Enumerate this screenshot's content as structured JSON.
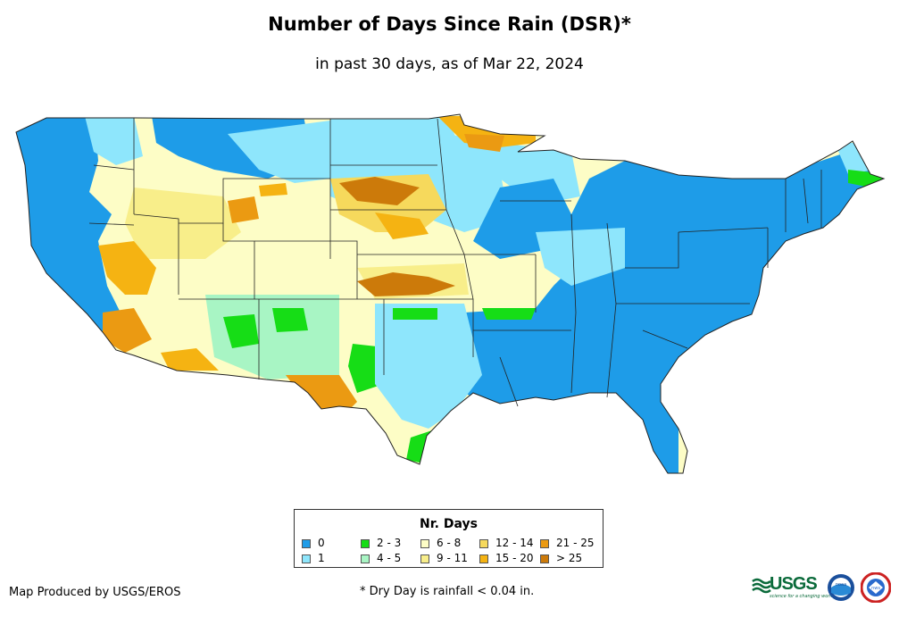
{
  "header": {
    "title": "Number of Days Since Rain (DSR)*",
    "subtitle": "in past 30 days, as of Mar 22, 2024"
  },
  "legend": {
    "title": "Nr. Days",
    "items": [
      {
        "label": "0",
        "color": "#1e9ce8"
      },
      {
        "label": "1",
        "color": "#8ee6fc"
      },
      {
        "label": "2 - 3",
        "color": "#16dd16"
      },
      {
        "label": "4 - 5",
        "color": "#a8f5c4"
      },
      {
        "label": "6 - 8",
        "color": "#fdfdc6"
      },
      {
        "label": "9 - 11",
        "color": "#f8ee8a"
      },
      {
        "label": "12 - 14",
        "color": "#f6d95c"
      },
      {
        "label": "15 - 20",
        "color": "#f5b312"
      },
      {
        "label": "21 - 25",
        "color": "#eb9a12"
      },
      {
        "label": "> 25",
        "color": "#cc7a0a"
      }
    ]
  },
  "footer": {
    "producer": "Map Produced by USGS/EROS",
    "note": "* Dry Day is rainfall < 0.04 in."
  },
  "logos": {
    "usgs": "USGS",
    "usgs_tagline": "science for a changing world",
    "noaa": "noaa",
    "nws": "nws"
  }
}
